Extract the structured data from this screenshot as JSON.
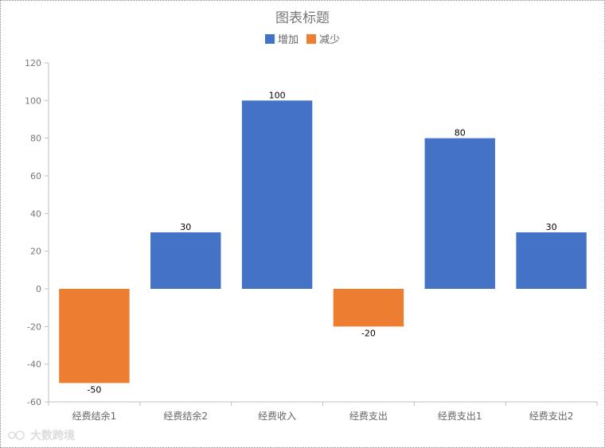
{
  "watermark": {
    "text": "大数跨境"
  },
  "chart_data": {
    "type": "bar",
    "title": "图表标题",
    "categories": [
      "经费结余1",
      "经费结余2",
      "经费收入",
      "经费支出",
      "经费支出1",
      "经费支出2"
    ],
    "values": [
      -50,
      30,
      100,
      -20,
      80,
      30
    ],
    "series": [
      {
        "name": "增加",
        "color": "#4472C4"
      },
      {
        "name": "减少",
        "color": "#ED7D31"
      }
    ],
    "value_labels": [
      "-50",
      "30",
      "100",
      "-20",
      "80",
      "30"
    ],
    "yticks": [
      120,
      100,
      80,
      60,
      40,
      20,
      0,
      -20,
      -40,
      -60
    ],
    "ylim": [
      -60,
      120
    ],
    "xlabel": "",
    "ylabel": "",
    "legend": "top",
    "grid": false
  }
}
